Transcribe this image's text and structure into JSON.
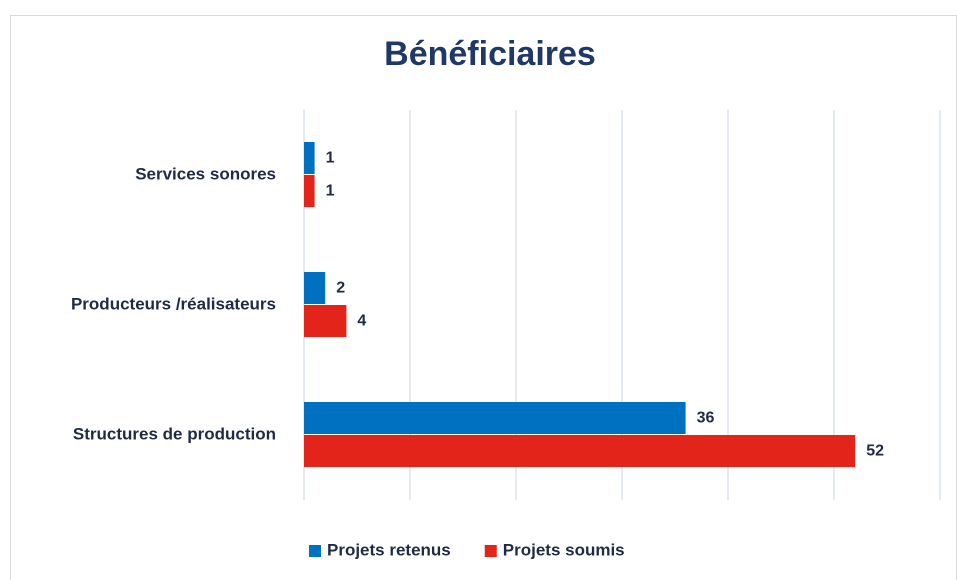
{
  "chart_data": {
    "type": "hbar",
    "title": "Bénéficiaires",
    "categories": [
      "Services sonores",
      "Producteurs /réalisateurs",
      "Structures de production"
    ],
    "series": [
      {
        "name": "Projets retenus",
        "color": "#0070c0",
        "values": [
          1,
          2,
          36
        ]
      },
      {
        "name": "Projets soumis",
        "color": "#e3241b",
        "values": [
          1,
          4,
          52
        ]
      }
    ],
    "xlim": [
      0,
      60
    ],
    "xticks": [
      0,
      10,
      20,
      30,
      40,
      50,
      60
    ],
    "grid": true,
    "legend": "bottom"
  }
}
